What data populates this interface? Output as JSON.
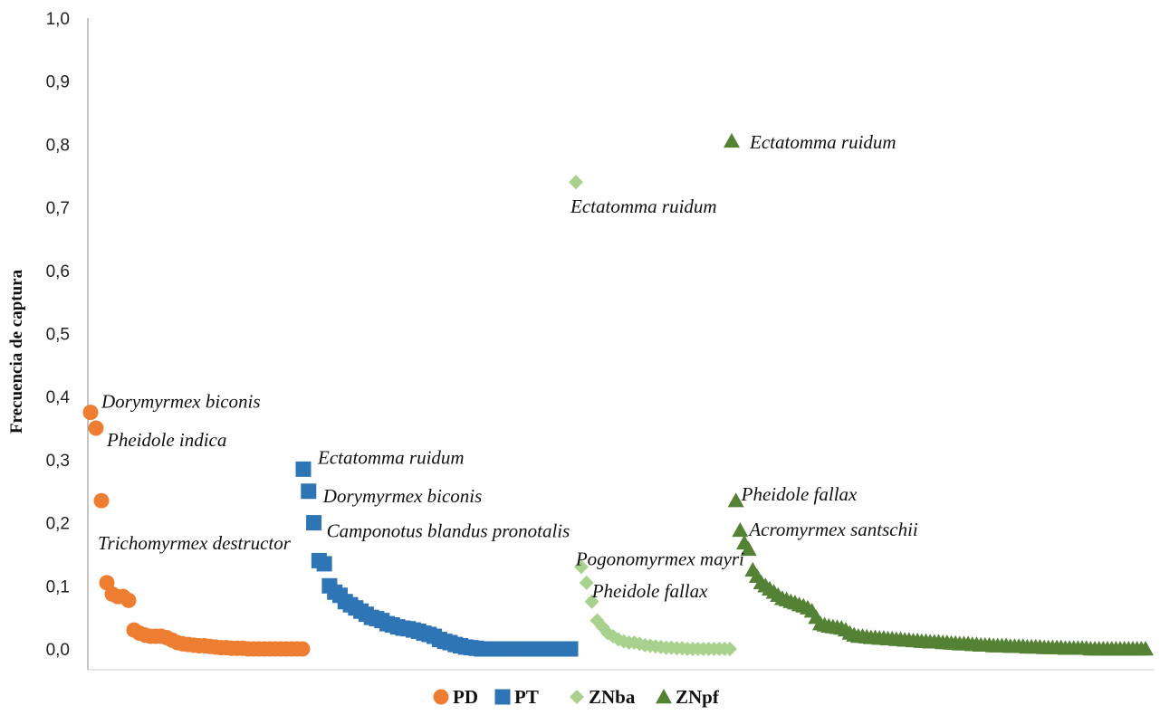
{
  "chart_data": {
    "type": "scatter",
    "ylabel": "Frecuencia de captura",
    "ylim": [
      0,
      1.0
    ],
    "yticks": [
      "0,0",
      "0,1",
      "0,2",
      "0,3",
      "0,4",
      "0,5",
      "0,6",
      "0,7",
      "0,8",
      "0,9",
      "1,0"
    ],
    "grid": false,
    "legend_position": "bottom",
    "series": [
      {
        "name": "PD",
        "color": "#ED7D31",
        "marker": "circle",
        "values": [
          0.375,
          0.35,
          0.235,
          0.105,
          0.087,
          0.083,
          0.083,
          0.077,
          0.03,
          0.025,
          0.022,
          0.02,
          0.02,
          0.02,
          0.018,
          0.014,
          0.01,
          0.008,
          0.007,
          0.006,
          0.005,
          0.005,
          0.004,
          0.003,
          0.002,
          0.002,
          0.001,
          0.001,
          0.001,
          0.0,
          0.0,
          0.0,
          0.0,
          0.0,
          0.0,
          0.0,
          0.0,
          0.0,
          0.0,
          0.0
        ]
      },
      {
        "name": "PT",
        "color": "#2E75B6",
        "marker": "square",
        "values": [
          0.285,
          0.25,
          0.2,
          0.14,
          0.135,
          0.1,
          0.09,
          0.085,
          0.075,
          0.07,
          0.065,
          0.06,
          0.055,
          0.05,
          0.048,
          0.045,
          0.04,
          0.038,
          0.035,
          0.033,
          0.032,
          0.03,
          0.028,
          0.025,
          0.023,
          0.02,
          0.015,
          0.012,
          0.01,
          0.007,
          0.005,
          0.003,
          0.002,
          0.001,
          0.0,
          0.0,
          0.0,
          0.0,
          0.0,
          0.0,
          0.0,
          0.0,
          0.0,
          0.0,
          0.0,
          0.0,
          0.0,
          0.0,
          0.0,
          0.0,
          0.0,
          0.0
        ]
      },
      {
        "name": "ZNba",
        "color": "#A9D18E",
        "marker": "diamond",
        "values": [
          0.74,
          0.13,
          0.105,
          0.075,
          0.045,
          0.035,
          0.025,
          0.02,
          0.015,
          0.012,
          0.01,
          0.01,
          0.008,
          0.006,
          0.005,
          0.004,
          0.003,
          0.002,
          0.002,
          0.001,
          0.001,
          0.0,
          0.0,
          0.0,
          0.0,
          0.0,
          0.0,
          0.0,
          0.0,
          0.0
        ]
      },
      {
        "name": "ZNpf",
        "color": "#548235",
        "marker": "triangle",
        "values": [
          0.805,
          0.235,
          0.188,
          0.168,
          0.158,
          0.125,
          0.115,
          0.105,
          0.1,
          0.095,
          0.09,
          0.085,
          0.08,
          0.078,
          0.075,
          0.073,
          0.07,
          0.068,
          0.065,
          0.06,
          0.05,
          0.04,
          0.038,
          0.036,
          0.035,
          0.034,
          0.033,
          0.03,
          0.025,
          0.022,
          0.02,
          0.02,
          0.019,
          0.018,
          0.018,
          0.017,
          0.017,
          0.016,
          0.016,
          0.015,
          0.015,
          0.014,
          0.014,
          0.013,
          0.013,
          0.012,
          0.012,
          0.011,
          0.011,
          0.011,
          0.01,
          0.01,
          0.009,
          0.009,
          0.008,
          0.008,
          0.008,
          0.007,
          0.007,
          0.006,
          0.006,
          0.006,
          0.005,
          0.005,
          0.005,
          0.005,
          0.004,
          0.004,
          0.004,
          0.004,
          0.003,
          0.003,
          0.003,
          0.003,
          0.002,
          0.002,
          0.002,
          0.002,
          0.002,
          0.001,
          0.001,
          0.001,
          0.001,
          0.001,
          0.001,
          0.0,
          0.0,
          0.0,
          0.0,
          0.0,
          0.0,
          0.0,
          0.0,
          0.0,
          0.0,
          0.0,
          0.0,
          0.0,
          0.0
        ]
      }
    ],
    "annotations": [
      {
        "text": "Dorymyrmex biconis",
        "series": "PD",
        "index": 0,
        "value": 0.375,
        "position": "right"
      },
      {
        "text": "Pheidole indica",
        "series": "PD",
        "index": 1,
        "value": 0.35,
        "position": "below-right"
      },
      {
        "text": "Trichomyrmex destructor",
        "series": "PD",
        "index": 2,
        "value": 0.235,
        "position": "below"
      },
      {
        "text": "Ectatomma ruidum",
        "series": "PT",
        "index": 0,
        "value": 0.285,
        "position": "above-right"
      },
      {
        "text": "Dorymyrmex biconis",
        "series": "PT",
        "index": 1,
        "value": 0.25,
        "position": "right"
      },
      {
        "text": "Camponotus blandus pronotalis",
        "series": "PT",
        "index": 2,
        "value": 0.2,
        "position": "right"
      },
      {
        "text": "Ectatomma ruidum",
        "series": "ZNba",
        "index": 0,
        "value": 0.74,
        "position": "below"
      },
      {
        "text": "Pogonomyrmex mayri",
        "series": "ZNba",
        "index": 1,
        "value": 0.13,
        "position": "above-right"
      },
      {
        "text": "Pheidole fallax",
        "series": "ZNba",
        "index": 2,
        "value": 0.105,
        "position": "below-right"
      },
      {
        "text": "Ectatomma ruidum",
        "series": "ZNpf",
        "index": 0,
        "value": 0.805,
        "position": "right"
      },
      {
        "text": "Pheidole fallax",
        "series": "ZNpf",
        "index": 1,
        "value": 0.235,
        "position": "right"
      },
      {
        "text": "Acromyrmex santschii",
        "series": "ZNpf",
        "index": 2,
        "value": 0.188,
        "position": "right"
      }
    ]
  }
}
